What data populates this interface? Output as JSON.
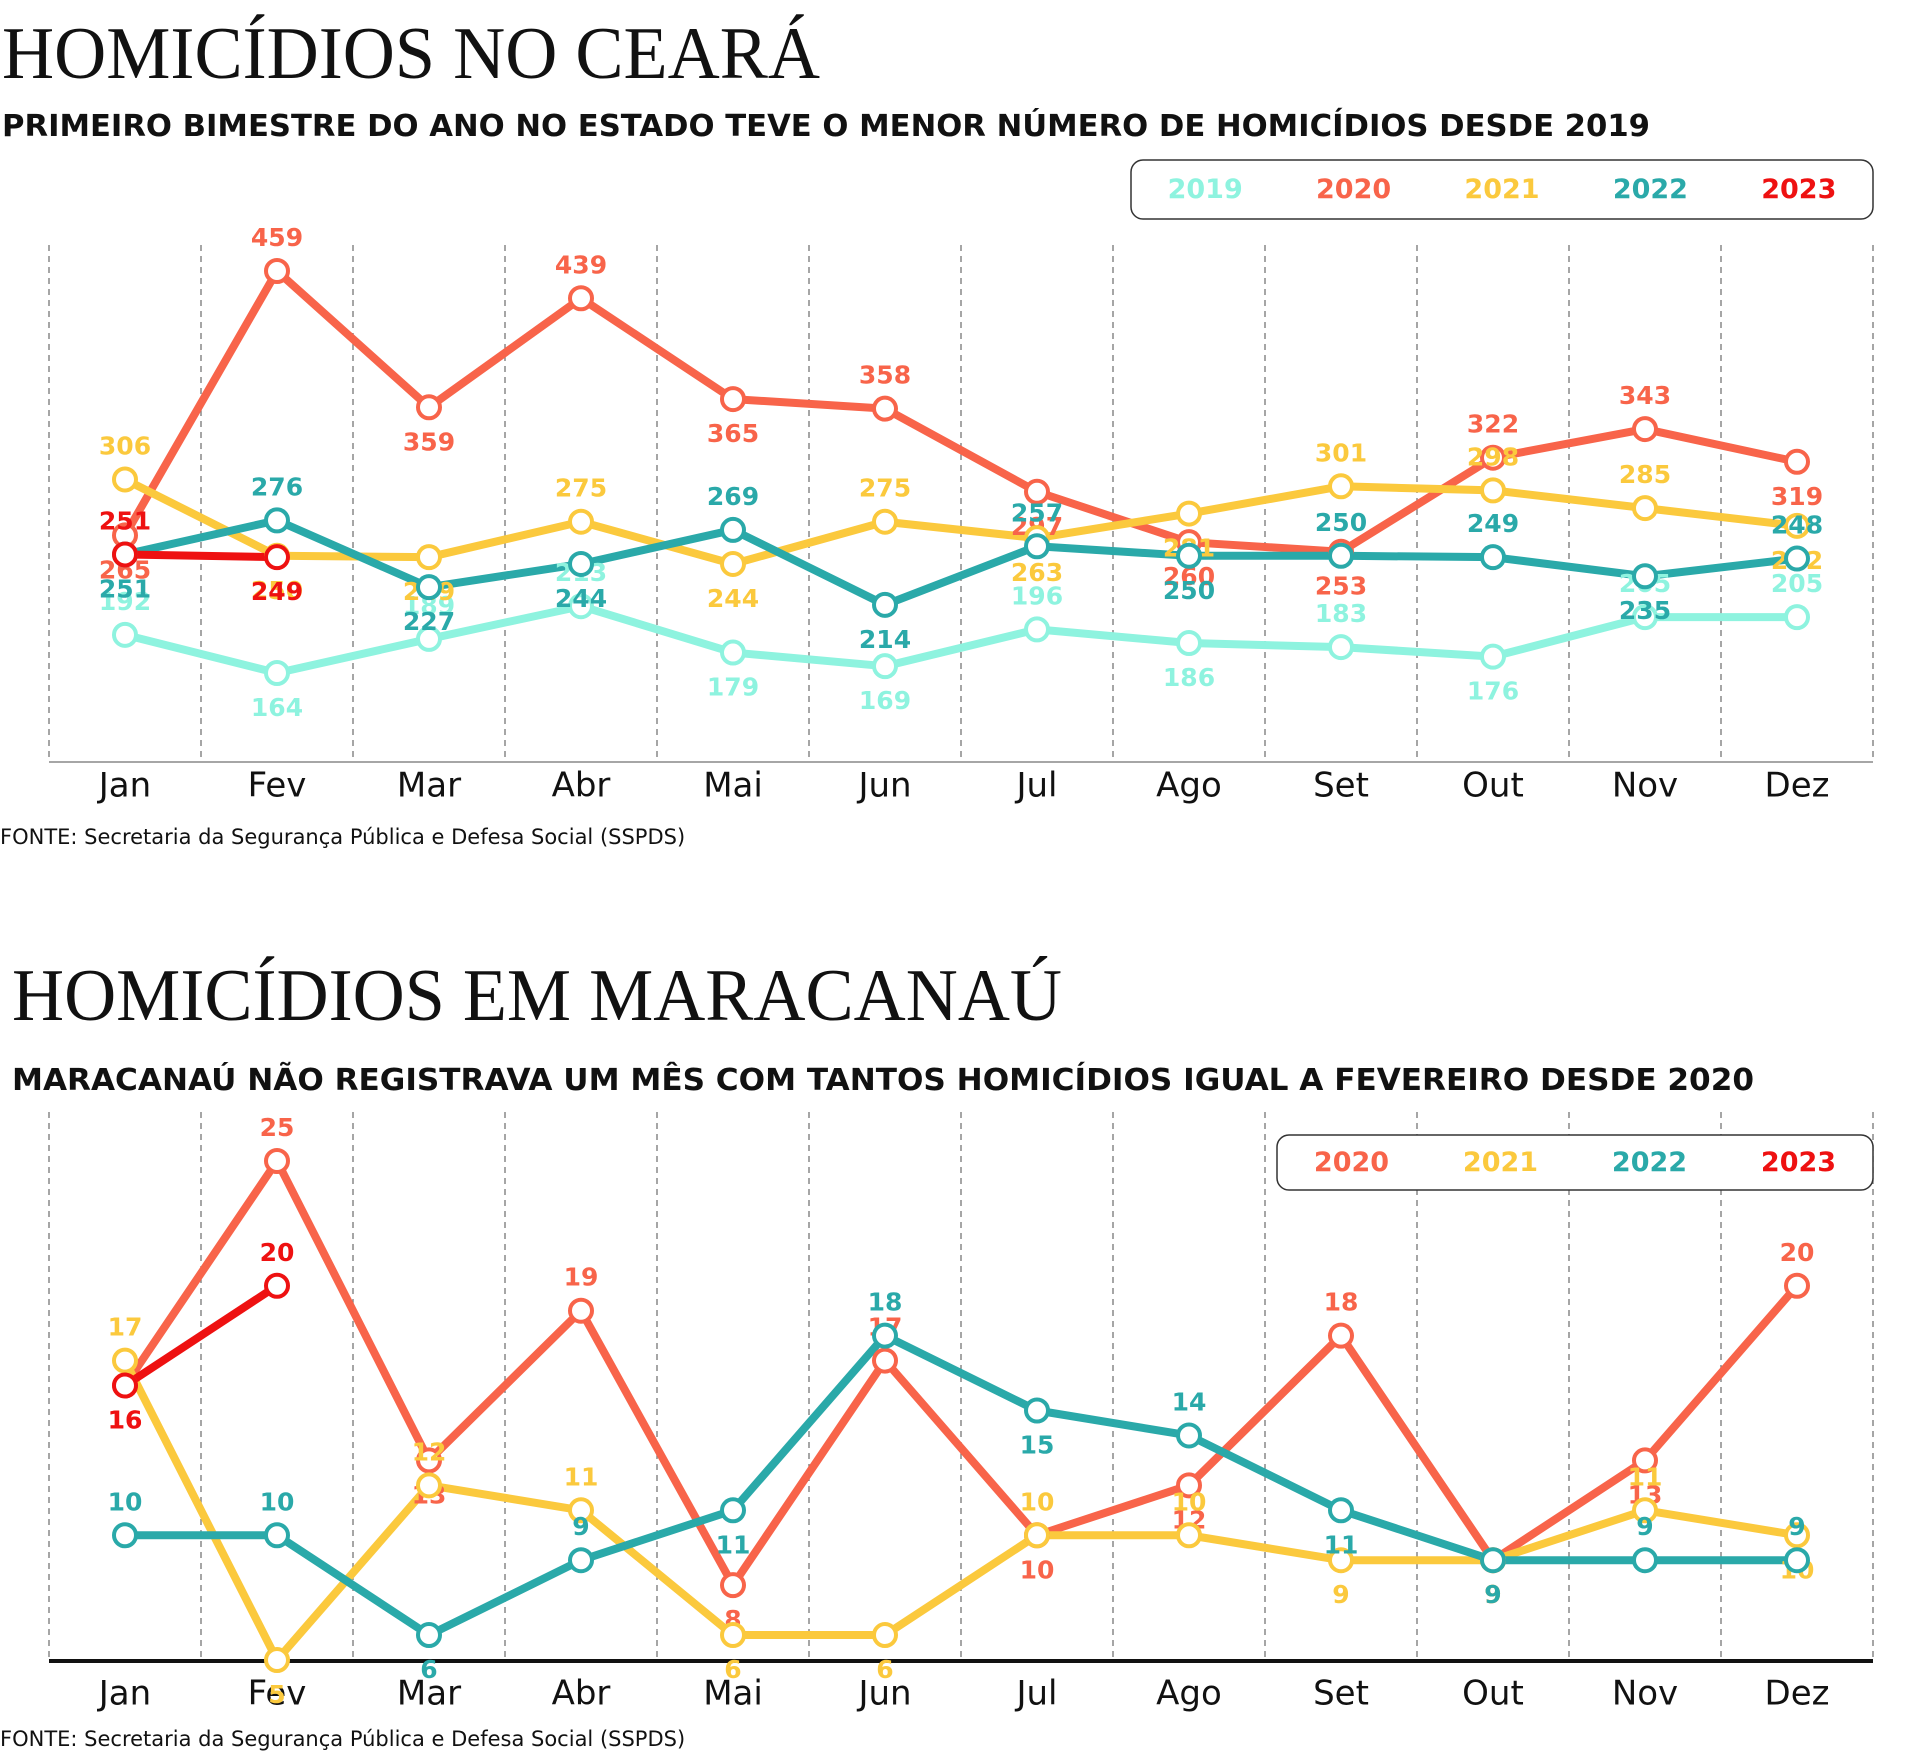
{
  "chart_data": [
    {
      "type": "line",
      "title": "HOMICÍDIOS NO CEARÁ",
      "subtitle": "PRIMEIRO BIMESTRE DO ANO NO ESTADO TEVE O MENOR NÚMERO DE HOMICÍDIOS DESDE 2019",
      "source": "FONTE: Secretaria da Segurança Pública e Defesa Social (SSPDS)",
      "categories": [
        "Jan",
        "Fev",
        "Mar",
        "Abr",
        "Mai",
        "Jun",
        "Jul",
        "Ago",
        "Set",
        "Out",
        "Nov",
        "Dez"
      ],
      "series": [
        {
          "name": "2019",
          "color": "#8ef3df",
          "values": [
            192,
            164,
            189,
            213,
            179,
            169,
            196,
            186,
            183,
            176,
            205,
            205
          ]
        },
        {
          "name": "2020",
          "color": "#f8644a",
          "values": [
            265,
            459,
            359,
            439,
            365,
            358,
            297,
            260,
            253,
            322,
            343,
            319
          ]
        },
        {
          "name": "2021",
          "color": "#fbc93d",
          "values": [
            306,
            250,
            249,
            275,
            244,
            275,
            263,
            281,
            301,
            298,
            285,
            272
          ]
        },
        {
          "name": "2022",
          "color": "#2aa9a9",
          "values": [
            251,
            276,
            227,
            244,
            269,
            214,
            257,
            250,
            250,
            249,
            235,
            248
          ]
        },
        {
          "name": "2023",
          "color": "#ee1111",
          "values": [
            251,
            249,
            null,
            null,
            null,
            null,
            null,
            null,
            null,
            null,
            null,
            null
          ]
        }
      ]
    },
    {
      "type": "line",
      "title": "HOMICÍDIOS EM MARACANAÚ",
      "subtitle": "MARACANAÚ NÃO REGISTRAVA UM MÊS COM TANTOS HOMICÍDIOS IGUAL A FEVEREIRO DESDE 2020",
      "source": "FONTE: Secretaria da Segurança Pública e Defesa Social (SSPDS)",
      "categories": [
        "Jan",
        "Fev",
        "Mar",
        "Abr",
        "Mai",
        "Jun",
        "Jul",
        "Ago",
        "Set",
        "Out",
        "Nov",
        "Dez"
      ],
      "series": [
        {
          "name": "2020",
          "color": "#f8644a",
          "values": [
            16,
            25,
            13,
            19,
            8,
            17,
            10,
            12,
            18,
            9,
            13,
            20
          ]
        },
        {
          "name": "2021",
          "color": "#fbc93d",
          "values": [
            17,
            5,
            12,
            11,
            6,
            6,
            10,
            10,
            9,
            9,
            11,
            10
          ]
        },
        {
          "name": "2022",
          "color": "#2aa9a9",
          "values": [
            10,
            10,
            6,
            9,
            11,
            18,
            15,
            14,
            11,
            9,
            9,
            9
          ]
        },
        {
          "name": "2023",
          "color": "#ee1111",
          "values": [
            16,
            20,
            null,
            null,
            null,
            null,
            null,
            null,
            null,
            null,
            null,
            null
          ]
        }
      ]
    }
  ]
}
